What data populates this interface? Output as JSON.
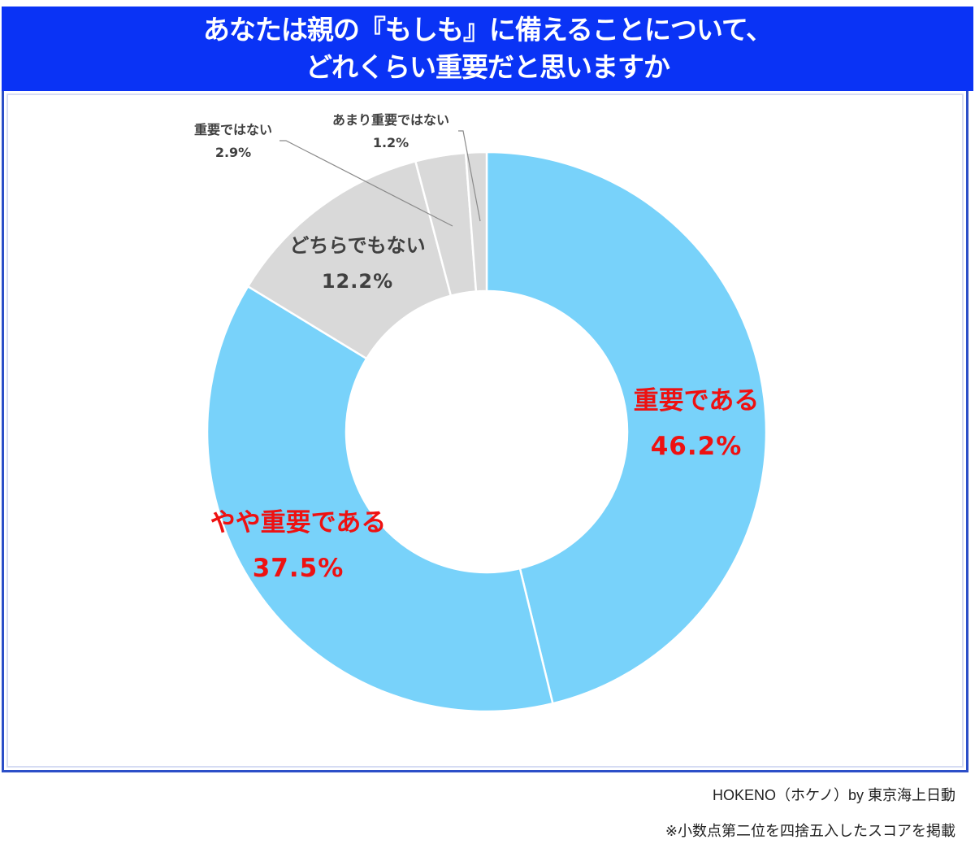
{
  "title": {
    "line1": "あなたは親の『もしも』に備えることについて、",
    "line2": "どれくらい重要だと思いますか"
  },
  "colors": {
    "title_bar": "#0a33f5",
    "frame_border": "#2c4fc8",
    "important_slice": "#78d2fa",
    "neutral_slice": "#d9d9d9",
    "highlight_text": "#ee1111",
    "neutral_text": "#404040"
  },
  "labels": {
    "important": {
      "name": "重要である",
      "value": "46.2%"
    },
    "somewhat_important": {
      "name": "やや重要である",
      "value": "37.5%"
    },
    "neither": {
      "name": "どちらでもない",
      "value": "12.2%"
    },
    "not_important": {
      "name": "重要ではない",
      "value": "2.9%"
    },
    "not_very_important": {
      "name": "あまり重要ではない",
      "value": "1.2%"
    }
  },
  "footer": {
    "source": "HOKENO（ホケノ）by 東京海上日動",
    "note": "※小数点第二位を四捨五入したスコアを掲載"
  },
  "chart_data": {
    "type": "pie",
    "variant": "donut",
    "title": "あなたは親の『もしも』に備えることについて、どれくらい重要だと思いますか",
    "categories": [
      "重要である",
      "やや重要である",
      "どちらでもない",
      "重要ではない",
      "あまり重要ではない"
    ],
    "values": [
      46.2,
      37.5,
      12.2,
      2.9,
      1.2
    ],
    "unit": "%",
    "colors": [
      "#78d2fa",
      "#78d2fa",
      "#d9d9d9",
      "#d9d9d9",
      "#d9d9d9"
    ],
    "start_angle": "12 o'clock",
    "direction": "clockwise",
    "legend": "none (direct labels)",
    "notes": [
      "HOKENO（ホケノ）by 東京海上日動",
      "※小数点第二位を四捨五入したスコアを掲載"
    ]
  }
}
